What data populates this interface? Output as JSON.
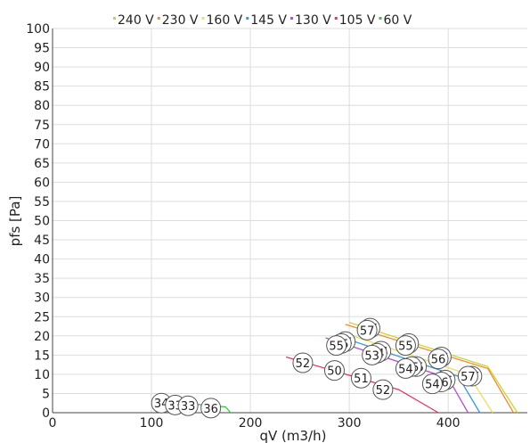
{
  "chart_data": {
    "type": "line",
    "xlabel": "qV (m3/h)",
    "ylabel": "pfs [Pa]",
    "xlim": [
      0,
      480
    ],
    "ylim": [
      0,
      100
    ],
    "x_ticks": [
      0,
      100,
      200,
      300,
      400
    ],
    "y_ticks": [
      0,
      5,
      10,
      15,
      20,
      25,
      30,
      35,
      40,
      45,
      50,
      55,
      60,
      65,
      70,
      75,
      80,
      85,
      90,
      95,
      100
    ],
    "grid": true,
    "legend_position": "top",
    "series": [
      {
        "name": "240 V",
        "color": "#c8d62e",
        "x": [
          300,
          440,
          470
        ],
        "y": [
          23.5,
          12,
          0
        ],
        "labels": [
          {
            "x": 321,
            "y": 22,
            "text": "57"
          },
          {
            "x": 360,
            "y": 18,
            "text": "55"
          },
          {
            "x": 393,
            "y": 14.5,
            "text": "56"
          },
          {
            "x": 424,
            "y": 9.5,
            "text": "57"
          }
        ]
      },
      {
        "name": "230 V",
        "color": "#f08a3a",
        "x": [
          296,
          440,
          466
        ],
        "y": [
          23,
          11.5,
          0
        ],
        "labels": [
          {
            "x": 318,
            "y": 21.5,
            "text": "57"
          },
          {
            "x": 357,
            "y": 17.5,
            "text": "55"
          },
          {
            "x": 390,
            "y": 14,
            "text": "56"
          },
          {
            "x": 420,
            "y": 9.5,
            "text": "57"
          }
        ]
      },
      {
        "name": "160 V",
        "color": "#e8e060",
        "x": [
          292,
          420,
          445
        ],
        "y": [
          21,
          10,
          0
        ],
        "labels": [
          {
            "x": 296,
            "y": 18.5,
            "text": "55"
          },
          {
            "x": 332,
            "y": 16,
            "text": "54"
          },
          {
            "x": 368,
            "y": 12,
            "text": "55"
          },
          {
            "x": 397,
            "y": 8.5,
            "text": "56"
          }
        ]
      },
      {
        "name": "145 V",
        "color": "#3a9ad8",
        "x": [
          288,
          410,
          432
        ],
        "y": [
          20,
          9.5,
          0
        ],
        "labels": [
          {
            "x": 292,
            "y": 18,
            "text": "55"
          },
          {
            "x": 328,
            "y": 15.5,
            "text": "54"
          },
          {
            "x": 363,
            "y": 12,
            "text": "55"
          },
          {
            "x": 393,
            "y": 8,
            "text": "56"
          }
        ]
      },
      {
        "name": "130 V",
        "color": "#b84fd0",
        "x": [
          276,
          400,
          420
        ],
        "y": [
          19.5,
          9,
          0
        ],
        "labels": [
          {
            "x": 287,
            "y": 17.5,
            "text": "55"
          },
          {
            "x": 323,
            "y": 15,
            "text": "53"
          },
          {
            "x": 357,
            "y": 11.5,
            "text": "54"
          },
          {
            "x": 384,
            "y": 7.5,
            "text": "54"
          }
        ]
      },
      {
        "name": "105 V",
        "color": "#e0356a",
        "x": [
          236,
          350,
          390
        ],
        "y": [
          14.5,
          6,
          0
        ],
        "labels": [
          {
            "x": 253,
            "y": 13,
            "text": "52"
          },
          {
            "x": 285,
            "y": 11,
            "text": "50"
          },
          {
            "x": 312,
            "y": 9,
            "text": "51"
          },
          {
            "x": 334,
            "y": 6,
            "text": "52"
          }
        ]
      },
      {
        "name": "60 V",
        "color": "#3ec13e",
        "x": [
          100,
          175,
          180
        ],
        "y": [
          3.2,
          1.5,
          0
        ],
        "labels": [
          {
            "x": 110,
            "y": 2.5,
            "text": "34"
          },
          {
            "x": 124,
            "y": 2,
            "text": "33"
          },
          {
            "x": 137,
            "y": 1.8,
            "text": "33"
          },
          {
            "x": 160,
            "y": 1.2,
            "text": "36"
          }
        ]
      }
    ]
  }
}
